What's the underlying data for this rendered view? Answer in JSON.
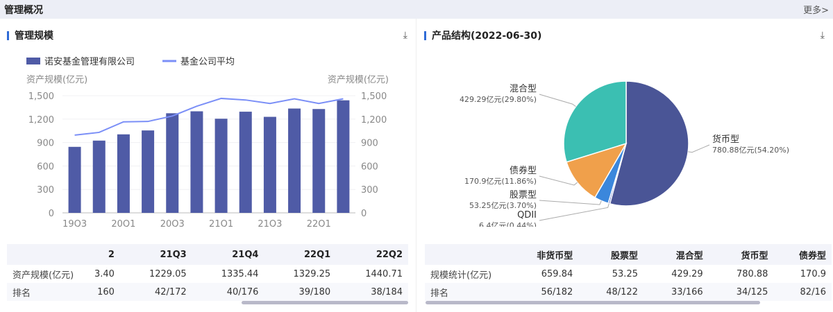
{
  "header": {
    "title": "管理概况",
    "more": "更多>"
  },
  "left": {
    "title": "管理规模",
    "download_icon": "download-icon",
    "chart_data": {
      "type": "bar+line",
      "legend": [
        "诺安基金管理有限公司",
        "基金公司平均"
      ],
      "legend_placement": "top-left",
      "ylabel_left": "资产规模(亿元)",
      "ylabel_right": "资产规模(亿元)",
      "ylim": [
        0,
        1500
      ],
      "yticks": [
        "0",
        "300",
        "600",
        "900",
        "1,200",
        "1,500"
      ],
      "categories": [
        "19Q3",
        "19Q4",
        "20Q1",
        "20Q2",
        "20Q3",
        "20Q4",
        "21Q1",
        "21Q2",
        "21Q3",
        "21Q4",
        "22Q1",
        "22Q2"
      ],
      "xtick_labels": [
        "19Q3",
        "20Q1",
        "20Q3",
        "21Q1",
        "21Q3",
        "22Q1"
      ],
      "series": [
        {
          "name": "诺安基金管理有限公司",
          "type": "bar",
          "color": "#4f5ba6",
          "values": [
            845,
            925,
            1005,
            1055,
            1275,
            1300,
            1205,
            1295,
            1229.05,
            1335.44,
            1329.25,
            1440.71
          ]
        },
        {
          "name": "基金公司平均",
          "type": "line",
          "color": "#7b8ff7",
          "values": [
            995,
            1030,
            1165,
            1170,
            1240,
            1365,
            1465,
            1445,
            1400,
            1460,
            1400,
            1460
          ]
        }
      ]
    },
    "table": {
      "columns": [
        "2",
        "21Q3",
        "21Q4",
        "22Q1",
        "22Q2"
      ],
      "rows": [
        {
          "label": "资产规模(亿元)",
          "cells": [
            "3.40",
            "1229.05",
            "1335.44",
            "1329.25",
            "1440.71"
          ]
        },
        {
          "label": "排名",
          "cells": [
            "160",
            "42/172",
            "40/176",
            "39/180",
            "38/184"
          ]
        }
      ]
    }
  },
  "right": {
    "title": "产品结构(2022-06-30)",
    "download_icon": "download-icon",
    "chart_data": {
      "type": "pie",
      "slices": [
        {
          "name": "货币型",
          "value": 780.88,
          "percent": 54.2,
          "label": "780.88亿元(54.20%)",
          "color": "#4a5596"
        },
        {
          "name": "QDII",
          "value": 6.4,
          "percent": 0.44,
          "label": "6.4亿元(0.44%)",
          "color": "#5b6fd0"
        },
        {
          "name": "股票型",
          "value": 53.25,
          "percent": 3.7,
          "label": "53.25亿元(3.70%)",
          "color": "#3b87dc"
        },
        {
          "name": "债券型",
          "value": 170.9,
          "percent": 11.86,
          "label": "170.9亿元(11.86%)",
          "color": "#f0a04b"
        },
        {
          "name": "混合型",
          "value": 429.29,
          "percent": 29.8,
          "label": "429.29亿元(29.80%)",
          "color": "#3bbfb2"
        }
      ]
    },
    "table": {
      "columns": [
        "非货币型",
        "股票型",
        "混合型",
        "货币型",
        "债券型"
      ],
      "rows": [
        {
          "label": "规模统计(亿元)",
          "cells": [
            "659.84",
            "53.25",
            "429.29",
            "780.88",
            "170.9"
          ]
        },
        {
          "label": "排名",
          "cells": [
            "56/182",
            "48/122",
            "33/166",
            "34/125",
            "82/16"
          ]
        }
      ]
    }
  }
}
